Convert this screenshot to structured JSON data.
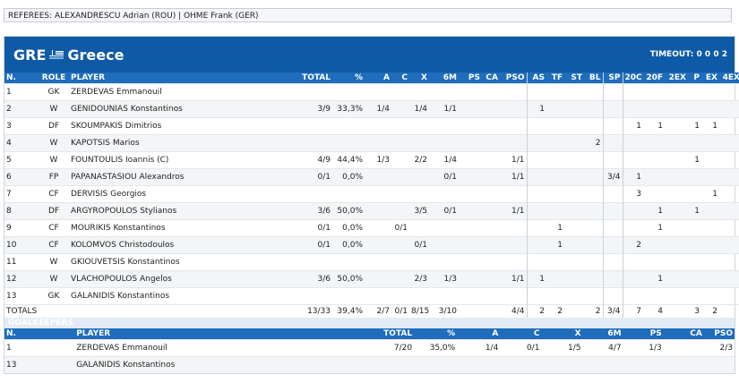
{
  "referees": "REFEREES: ALEXANDRESCU Adrian (ROU) | OHME Frank (GER)",
  "team": {
    "code": "GRE",
    "name": "Greece",
    "timeout": "TIMEOUT: 0 0 0 2",
    "flag_icon": "greek-flag-icon"
  },
  "players_header": [
    "N.",
    "ROLE",
    "PLAYER",
    "TOTAL",
    "%",
    "A",
    "C",
    "X",
    "6M",
    "PS",
    "CA",
    "PSO",
    "AS",
    "TF",
    "ST",
    "BL",
    "SP",
    "20C",
    "20F",
    "2EX",
    "P",
    "EX",
    "4EX"
  ],
  "players": [
    {
      "n": "1",
      "role": "GK",
      "player": "ZERDEVAS Emmanouil",
      "total": "",
      "pct": "",
      "a": "",
      "c": "",
      "x": "",
      "m6": "",
      "ps": "",
      "ca": "",
      "pso": "",
      "as": "",
      "tf": "",
      "st": "",
      "bl": "",
      "sp": "",
      "c20": "",
      "f20": "",
      "ex2": "",
      "p": "",
      "ex": "",
      "ex4": ""
    },
    {
      "n": "2",
      "role": "W",
      "player": "GENIDOUNIAS Konstantinos",
      "total": "3/9",
      "pct": "33,3%",
      "a": "1/4",
      "c": "",
      "x": "1/4",
      "m6": "1/1",
      "ps": "",
      "ca": "",
      "pso": "",
      "as": "1",
      "tf": "",
      "st": "",
      "bl": "",
      "sp": "",
      "c20": "",
      "f20": "",
      "ex2": "",
      "p": "",
      "ex": "",
      "ex4": ""
    },
    {
      "n": "3",
      "role": "DF",
      "player": "SKOUMPAKIS Dimitrios",
      "total": "",
      "pct": "",
      "a": "",
      "c": "",
      "x": "",
      "m6": "",
      "ps": "",
      "ca": "",
      "pso": "",
      "as": "",
      "tf": "",
      "st": "",
      "bl": "",
      "sp": "",
      "c20": "1",
      "f20": "1",
      "ex2": "",
      "p": "1",
      "ex": "1",
      "ex4": ""
    },
    {
      "n": "4",
      "role": "W",
      "player": "KAPOTSIS Marios",
      "total": "",
      "pct": "",
      "a": "",
      "c": "",
      "x": "",
      "m6": "",
      "ps": "",
      "ca": "",
      "pso": "",
      "as": "",
      "tf": "",
      "st": "",
      "bl": "2",
      "sp": "",
      "c20": "",
      "f20": "",
      "ex2": "",
      "p": "",
      "ex": "",
      "ex4": ""
    },
    {
      "n": "5",
      "role": "W",
      "player": "FOUNTOULIS Ioannis (C)",
      "total": "4/9",
      "pct": "44,4%",
      "a": "1/3",
      "c": "",
      "x": "2/2",
      "m6": "1/4",
      "ps": "",
      "ca": "",
      "pso": "1/1",
      "as": "",
      "tf": "",
      "st": "",
      "bl": "",
      "sp": "",
      "c20": "",
      "f20": "",
      "ex2": "",
      "p": "1",
      "ex": "",
      "ex4": ""
    },
    {
      "n": "6",
      "role": "FP",
      "player": "PAPANASTASIOU Alexandros",
      "total": "0/1",
      "pct": "0,0%",
      "a": "",
      "c": "",
      "x": "",
      "m6": "0/1",
      "ps": "",
      "ca": "",
      "pso": "1/1",
      "as": "",
      "tf": "",
      "st": "",
      "bl": "",
      "sp": "3/4",
      "c20": "1",
      "f20": "",
      "ex2": "",
      "p": "",
      "ex": "",
      "ex4": ""
    },
    {
      "n": "7",
      "role": "CF",
      "player": "DERVISIS Georgios",
      "total": "",
      "pct": "",
      "a": "",
      "c": "",
      "x": "",
      "m6": "",
      "ps": "",
      "ca": "",
      "pso": "",
      "as": "",
      "tf": "",
      "st": "",
      "bl": "",
      "sp": "",
      "c20": "3",
      "f20": "",
      "ex2": "",
      "p": "",
      "ex": "1",
      "ex4": ""
    },
    {
      "n": "8",
      "role": "DF",
      "player": "ARGYROPOULOS Stylianos",
      "total": "3/6",
      "pct": "50,0%",
      "a": "",
      "c": "",
      "x": "3/5",
      "m6": "0/1",
      "ps": "",
      "ca": "",
      "pso": "1/1",
      "as": "",
      "tf": "",
      "st": "",
      "bl": "",
      "sp": "",
      "c20": "",
      "f20": "1",
      "ex2": "",
      "p": "1",
      "ex": "",
      "ex4": ""
    },
    {
      "n": "9",
      "role": "CF",
      "player": "MOURIKIS Konstantinos",
      "total": "0/1",
      "pct": "0,0%",
      "a": "",
      "c": "0/1",
      "x": "",
      "m6": "",
      "ps": "",
      "ca": "",
      "pso": "",
      "as": "",
      "tf": "1",
      "st": "",
      "bl": "",
      "sp": "",
      "c20": "",
      "f20": "1",
      "ex2": "",
      "p": "",
      "ex": "",
      "ex4": ""
    },
    {
      "n": "10",
      "role": "CF",
      "player": "KOLOMVOS Christodoulos",
      "total": "0/1",
      "pct": "0,0%",
      "a": "",
      "c": "",
      "x": "0/1",
      "m6": "",
      "ps": "",
      "ca": "",
      "pso": "",
      "as": "",
      "tf": "1",
      "st": "",
      "bl": "",
      "sp": "",
      "c20": "2",
      "f20": "",
      "ex2": "",
      "p": "",
      "ex": "",
      "ex4": ""
    },
    {
      "n": "11",
      "role": "W",
      "player": "GKIOUVETSIS Konstantinos",
      "total": "",
      "pct": "",
      "a": "",
      "c": "",
      "x": "",
      "m6": "",
      "ps": "",
      "ca": "",
      "pso": "",
      "as": "",
      "tf": "",
      "st": "",
      "bl": "",
      "sp": "",
      "c20": "",
      "f20": "",
      "ex2": "",
      "p": "",
      "ex": "",
      "ex4": ""
    },
    {
      "n": "12",
      "role": "W",
      "player": "VLACHOPOULOS Angelos",
      "total": "3/6",
      "pct": "50,0%",
      "a": "",
      "c": "",
      "x": "2/3",
      "m6": "1/3",
      "ps": "",
      "ca": "",
      "pso": "1/1",
      "as": "1",
      "tf": "",
      "st": "",
      "bl": "",
      "sp": "",
      "c20": "",
      "f20": "1",
      "ex2": "",
      "p": "",
      "ex": "",
      "ex4": ""
    },
    {
      "n": "13",
      "role": "GK",
      "player": "GALANIDIS Konstantinos",
      "total": "",
      "pct": "",
      "a": "",
      "c": "",
      "x": "",
      "m6": "",
      "ps": "",
      "ca": "",
      "pso": "",
      "as": "",
      "tf": "",
      "st": "",
      "bl": "",
      "sp": "",
      "c20": "",
      "f20": "",
      "ex2": "",
      "p": "",
      "ex": "",
      "ex4": ""
    }
  ],
  "totals": {
    "label": "TOTALS",
    "total": "13/33",
    "pct": "39,4%",
    "a": "2/7",
    "c": "0/1",
    "x": "8/15",
    "m6": "3/10",
    "ps": "",
    "ca": "",
    "pso": "4/4",
    "as": "2",
    "tf": "2",
    "st": "",
    "bl": "2",
    "sp": "3/4",
    "c20": "7",
    "f20": "4",
    "ex2": "",
    "p": "3",
    "ex": "2",
    "ex4": ""
  },
  "goalkeepers_title": "GOALKEEPERS",
  "gk_header": [
    "N.",
    "PLAYER",
    "TOTAL",
    "%",
    "A",
    "C",
    "X",
    "6M",
    "PS",
    "CA",
    "PSO"
  ],
  "goalkeepers": [
    {
      "n": "1",
      "player": "ZERDEVAS Emmanouil",
      "total": "7/20",
      "pct": "35,0%",
      "a": "1/4",
      "c": "0/1",
      "x": "1/5",
      "m6": "4/7",
      "ps": "1/3",
      "ca": "",
      "pso": "2/3"
    },
    {
      "n": "13",
      "player": "GALANIDIS Konstantinos",
      "total": "",
      "pct": "",
      "a": "",
      "c": "",
      "x": "",
      "m6": "",
      "ps": "",
      "ca": "",
      "pso": ""
    }
  ]
}
